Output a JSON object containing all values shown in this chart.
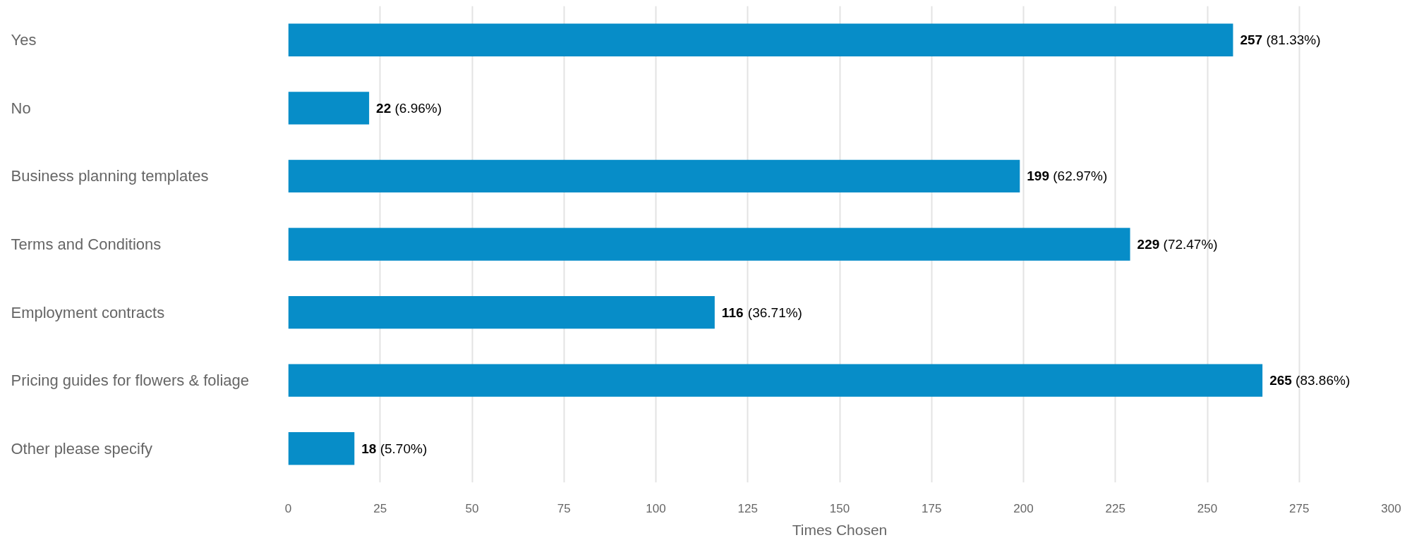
{
  "chart_data": {
    "type": "bar",
    "orientation": "horizontal",
    "categories": [
      "Yes",
      "No",
      "Business planning templates",
      "Terms and Conditions",
      "Employment contracts",
      "Pricing guides for flowers & foliage",
      "Other please specify"
    ],
    "values": [
      257,
      22,
      199,
      229,
      116,
      265,
      18
    ],
    "value_labels": [
      "257 (81.33%)",
      "22 (6.96%)",
      "199 (62.97%)",
      "229 (72.47%)",
      "116 (36.71%)",
      "265 (83.86%)",
      "18 (5.70%)"
    ],
    "color": "#078dc8",
    "xlim": [
      0,
      300
    ],
    "xticks": [
      0,
      25,
      50,
      75,
      100,
      125,
      150,
      175,
      200,
      225,
      250,
      275,
      300
    ],
    "xlabel": "Times Chosen",
    "grid": "x"
  }
}
